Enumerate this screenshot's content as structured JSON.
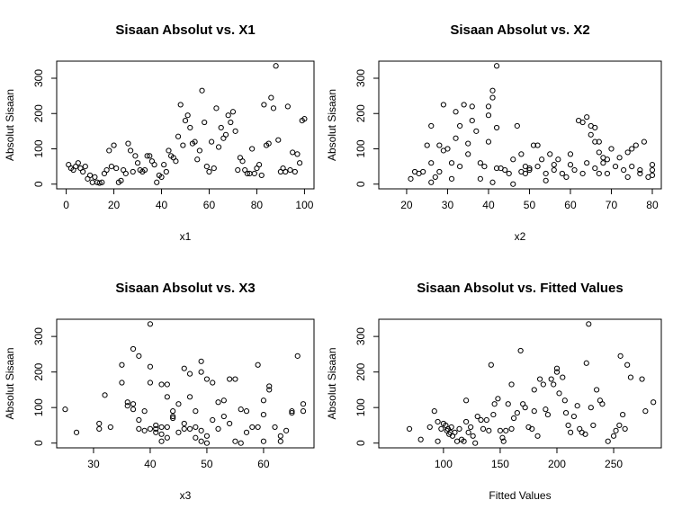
{
  "chart_data": [
    {
      "type": "scatter",
      "title": "Sisaan Absolut vs. X1",
      "xlabel": "x1",
      "ylabel": "Absolut Sisaan",
      "color": "#000000",
      "x": [
        1,
        2,
        3,
        4,
        5,
        6,
        7,
        8,
        9,
        10,
        11,
        12,
        13,
        14,
        15,
        16,
        17,
        18,
        19,
        20,
        21,
        22,
        23,
        24,
        25,
        26,
        27,
        28,
        29,
        30,
        31,
        32,
        33,
        34,
        35,
        36,
        37,
        38,
        39,
        40,
        41,
        42,
        43,
        44,
        45,
        46,
        47,
        48,
        49,
        50,
        51,
        52,
        53,
        54,
        55,
        56,
        57,
        58,
        59,
        60,
        61,
        62,
        63,
        64,
        65,
        66,
        67,
        68,
        69,
        70,
        71,
        72,
        73,
        74,
        75,
        76,
        77,
        78,
        79,
        80,
        81,
        82,
        83,
        84,
        85,
        86,
        87,
        88,
        89,
        90,
        91,
        92,
        93,
        94,
        95,
        96,
        97,
        98,
        99,
        100
      ],
      "values": [
        55,
        45,
        40,
        50,
        60,
        45,
        35,
        50,
        15,
        25,
        5,
        20,
        5,
        3,
        5,
        30,
        40,
        95,
        50,
        110,
        45,
        5,
        10,
        40,
        30,
        115,
        95,
        35,
        80,
        60,
        40,
        35,
        40,
        80,
        80,
        65,
        55,
        5,
        25,
        20,
        55,
        35,
        95,
        80,
        75,
        65,
        135,
        225,
        110,
        180,
        195,
        160,
        115,
        120,
        70,
        95,
        265,
        175,
        50,
        35,
        120,
        45,
        215,
        105,
        160,
        130,
        140,
        195,
        175,
        205,
        150,
        40,
        75,
        65,
        40,
        30,
        30,
        100,
        30,
        45,
        55,
        25,
        225,
        110,
        115,
        245,
        215,
        335,
        125,
        35,
        45,
        35,
        220,
        40,
        90,
        35,
        85,
        60,
        180,
        185
      ],
      "xlim": [
        -4,
        104
      ],
      "ylim": [
        -13.4,
        348.4
      ],
      "xticks": [
        0,
        20,
        40,
        60,
        80,
        100
      ],
      "yticks": [
        0,
        100,
        200,
        300
      ]
    },
    {
      "type": "scatter",
      "title": "Sisaan Absolut vs. X2",
      "xlabel": "x2",
      "ylabel": "Absolut Sisaan",
      "color": "#000000",
      "x": [
        21,
        22,
        23,
        24,
        25,
        26,
        26,
        26,
        27,
        28,
        28,
        29,
        29,
        30,
        31,
        31,
        32,
        32,
        33,
        33,
        34,
        35,
        35,
        36,
        36,
        37,
        38,
        38,
        39,
        40,
        40,
        40,
        41,
        41,
        41,
        42,
        42,
        42,
        43,
        44,
        45,
        46,
        46,
        47,
        48,
        48,
        49,
        49,
        50,
        50,
        51,
        52,
        52,
        53,
        54,
        54,
        55,
        56,
        56,
        57,
        58,
        59,
        60,
        60,
        61,
        62,
        63,
        63,
        64,
        64,
        65,
        65,
        66,
        66,
        66,
        67,
        67,
        67,
        68,
        68,
        69,
        69,
        70,
        71,
        72,
        73,
        74,
        74,
        75,
        75,
        76,
        77,
        77,
        78,
        79,
        80,
        80,
        80
      ],
      "values": [
        15,
        35,
        30,
        35,
        110,
        5,
        60,
        165,
        20,
        35,
        110,
        225,
        95,
        100,
        15,
        60,
        205,
        130,
        165,
        50,
        225,
        115,
        85,
        180,
        220,
        150,
        60,
        15,
        50,
        220,
        195,
        120,
        265,
        245,
        5,
        335,
        160,
        45,
        45,
        40,
        30,
        0,
        70,
        165,
        35,
        85,
        30,
        50,
        45,
        40,
        110,
        110,
        50,
        70,
        30,
        10,
        85,
        55,
        40,
        70,
        30,
        20,
        55,
        85,
        40,
        180,
        30,
        175,
        190,
        60,
        140,
        165,
        120,
        45,
        160,
        120,
        90,
        30,
        75,
        60,
        70,
        30,
        100,
        50,
        75,
        40,
        20,
        90,
        100,
        50,
        110,
        40,
        30,
        120,
        20,
        25,
        40,
        55
      ],
      "xlim": [
        13.2,
        82.2
      ],
      "ylim": [
        -13.4,
        348.4
      ],
      "xticks": [
        20,
        30,
        40,
        50,
        60,
        70,
        80
      ],
      "yticks": [
        0,
        100,
        200,
        300
      ]
    },
    {
      "type": "scatter",
      "title": "Sisaan Absolut vs. X3",
      "xlabel": "x3",
      "ylabel": "Absolut Sisaan",
      "color": "#000000",
      "x": [
        25,
        27,
        31,
        31,
        32,
        33,
        35,
        35,
        36,
        36,
        37,
        37,
        37,
        38,
        38,
        38,
        39,
        39,
        40,
        40,
        40,
        40,
        41,
        41,
        41,
        42,
        42,
        42,
        42,
        43,
        43,
        43,
        43,
        44,
        44,
        44,
        45,
        45,
        46,
        46,
        46,
        47,
        47,
        47,
        48,
        48,
        48,
        49,
        49,
        49,
        49,
        50,
        50,
        50,
        51,
        51,
        52,
        52,
        53,
        53,
        54,
        54,
        55,
        55,
        56,
        56,
        57,
        57,
        58,
        59,
        59,
        60,
        60,
        60,
        61,
        61,
        62,
        63,
        63,
        64,
        65,
        65,
        66,
        67,
        67
      ],
      "values": [
        95,
        30,
        40,
        55,
        135,
        45,
        170,
        220,
        105,
        115,
        110,
        95,
        265,
        40,
        65,
        245,
        35,
        90,
        170,
        40,
        215,
        335,
        30,
        50,
        40,
        45,
        165,
        5,
        25,
        15,
        45,
        130,
        165,
        70,
        75,
        90,
        30,
        110,
        55,
        210,
        40,
        40,
        195,
        130,
        15,
        90,
        45,
        230,
        200,
        35,
        5,
        0,
        180,
        20,
        170,
        65,
        40,
        115,
        120,
        75,
        55,
        180,
        5,
        180,
        95,
        0,
        30,
        90,
        45,
        220,
        45,
        5,
        120,
        80,
        160,
        150,
        45,
        5,
        20,
        35,
        85,
        90,
        245,
        90,
        110
      ],
      "xlim": [
        23.5,
        68.9
      ],
      "ylim": [
        -13.4,
        348.4
      ],
      "xticks": [
        30,
        40,
        50,
        60
      ],
      "yticks": [
        0,
        100,
        200,
        300
      ]
    },
    {
      "type": "scatter",
      "title": "Sisaan Absolut vs. Fitted Values",
      "xlabel": "Fitted Values",
      "ylabel": "Absolut Sisaan",
      "color": "#000000",
      "x": [
        70,
        80,
        88,
        92,
        95,
        95,
        98,
        100,
        102,
        103,
        104,
        105,
        106,
        107,
        108,
        110,
        112,
        114,
        116,
        118,
        120,
        120,
        122,
        124,
        126,
        128,
        130,
        133,
        135,
        138,
        140,
        142,
        144,
        145,
        148,
        150,
        152,
        153,
        155,
        157,
        160,
        160,
        162,
        165,
        168,
        170,
        172,
        175,
        178,
        180,
        180,
        183,
        185,
        188,
        190,
        192,
        195,
        197,
        200,
        200,
        202,
        205,
        207,
        208,
        210,
        212,
        215,
        218,
        220,
        222,
        225,
        226,
        228,
        230,
        232,
        235,
        238,
        240,
        245,
        250,
        252,
        255,
        256,
        258,
        260,
        262,
        265,
        275,
        278,
        285
      ],
      "values": [
        40,
        10,
        45,
        90,
        60,
        5,
        40,
        55,
        50,
        35,
        40,
        25,
        30,
        45,
        20,
        30,
        5,
        40,
        10,
        5,
        60,
        120,
        30,
        45,
        20,
        0,
        75,
        65,
        40,
        65,
        35,
        220,
        80,
        110,
        125,
        35,
        15,
        5,
        35,
        110,
        40,
        165,
        70,
        85,
        260,
        110,
        100,
        45,
        40,
        90,
        150,
        20,
        180,
        165,
        95,
        80,
        180,
        165,
        200,
        210,
        140,
        185,
        120,
        85,
        50,
        30,
        75,
        105,
        40,
        30,
        25,
        225,
        335,
        100,
        50,
        150,
        120,
        110,
        5,
        20,
        35,
        50,
        245,
        80,
        40,
        220,
        185,
        180,
        90,
        115
      ],
      "xlim": [
        43,
        292
      ],
      "ylim": [
        -13.4,
        348.4
      ],
      "xticks": [
        100,
        150,
        200,
        250
      ],
      "yticks": [
        0,
        100,
        200,
        300
      ]
    }
  ]
}
